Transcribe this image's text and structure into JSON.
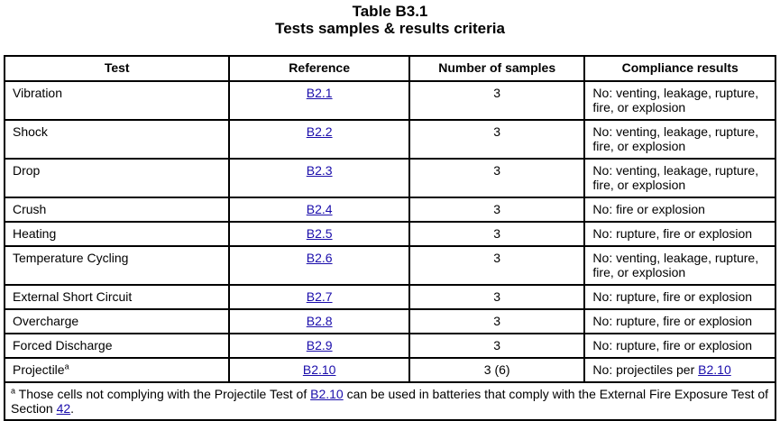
{
  "title": {
    "line1": "Table B3.1",
    "line2": "Tests samples & results criteria"
  },
  "headers": [
    "Test",
    "Reference",
    "Number of samples",
    "Compliance results"
  ],
  "rows": [
    {
      "test": "Vibration",
      "ref": "B2.1",
      "samples": "3",
      "result": "No: venting, leakage, rupture, fire, or explosion"
    },
    {
      "test": "Shock",
      "ref": "B2.2",
      "samples": "3",
      "result": "No: venting, leakage, rupture, fire, or explosion"
    },
    {
      "test": "Drop",
      "ref": "B2.3",
      "samples": "3",
      "result": "No: venting, leakage, rupture, fire, or explosion"
    },
    {
      "test": "Crush",
      "ref": "B2.4",
      "samples": "3",
      "result": "No: fire or explosion"
    },
    {
      "test": "Heating",
      "ref": "B2.5",
      "samples": "3",
      "result": "No: rupture, fire or explosion"
    },
    {
      "test": "Temperature Cycling",
      "ref": "B2.6",
      "samples": "3",
      "result": "No: venting, leakage, rupture, fire, or explosion"
    },
    {
      "test": "External Short Circuit",
      "ref": "B2.7",
      "samples": "3",
      "result": "No: rupture, fire or explosion"
    },
    {
      "test": "Overcharge",
      "ref": "B2.8",
      "samples": "3",
      "result": "No: rupture, fire or explosion"
    },
    {
      "test": "Forced Discharge",
      "ref": "B2.9",
      "samples": "3",
      "result": "No: rupture, fire or explosion"
    }
  ],
  "last_row": {
    "test": "Projectile",
    "test_sup": "a",
    "ref": "B2.10",
    "samples": "3 (6)",
    "result_text": "No: projectiles per ",
    "result_link": "B2.10"
  },
  "footnote": {
    "mark": "a",
    "text1": " Those cells not complying with the Projectile Test of ",
    "link1": "B2.10",
    "text2": " can be used in batteries that comply with the External Fire Exposure Test of Section ",
    "link2": "42",
    "text3": "."
  }
}
